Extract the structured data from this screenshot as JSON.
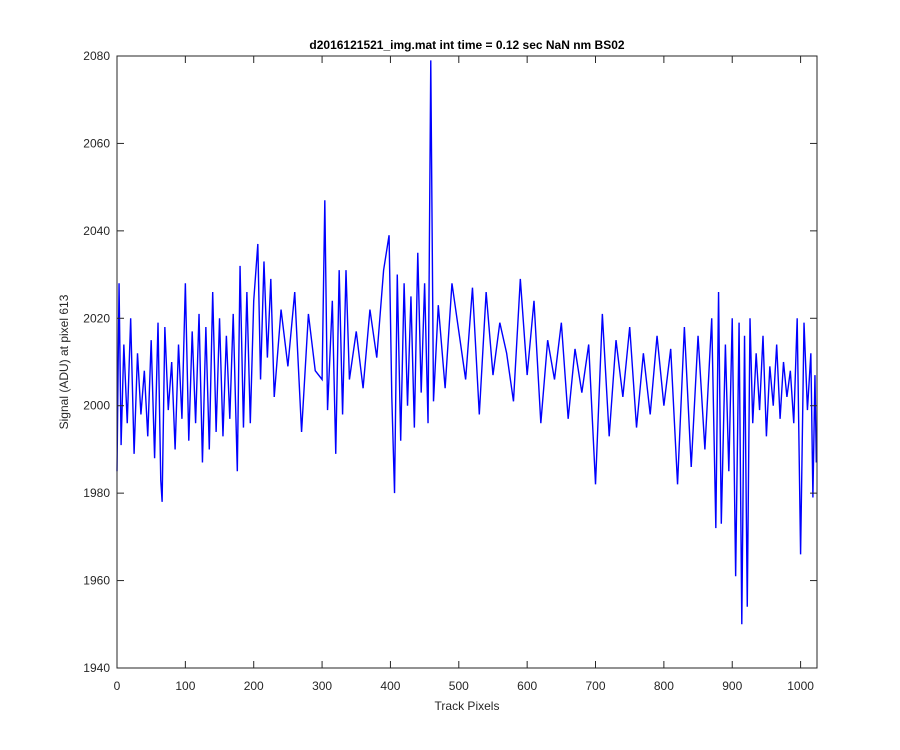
{
  "chart_data": {
    "type": "line",
    "title": "d2016121521_img.mat int time = 0.12 sec  NaN nm BS02",
    "xlabel": "Track Pixels",
    "ylabel": "Signal (ADU) at pixel 613",
    "xlim": [
      0,
      1024
    ],
    "ylim": [
      1940,
      2080
    ],
    "xticks": [
      0,
      100,
      200,
      300,
      400,
      500,
      600,
      700,
      800,
      900,
      1000
    ],
    "yticks": [
      1940,
      1960,
      1980,
      2000,
      2020,
      2040,
      2060,
      2080
    ],
    "grid": false,
    "color": "#0000ff",
    "series": [
      {
        "x": [
          0,
          3,
          6,
          10,
          15,
          20,
          25,
          30,
          35,
          40,
          45,
          50,
          55,
          60,
          64,
          66,
          70,
          75,
          80,
          85,
          90,
          95,
          100,
          105,
          110,
          115,
          120,
          125,
          130,
          135,
          140,
          145,
          150,
          155,
          160,
          165,
          170,
          176,
          180,
          185,
          190,
          195,
          200,
          206,
          210,
          215,
          220,
          225,
          230,
          240,
          250,
          260,
          270,
          280,
          290,
          300,
          304,
          308,
          315,
          320,
          325,
          330,
          335,
          340,
          350,
          360,
          370,
          380,
          390,
          398,
          402,
          406,
          410,
          415,
          420,
          425,
          430,
          435,
          440,
          445,
          450,
          455,
          459,
          463,
          470,
          480,
          490,
          500,
          510,
          520,
          530,
          540,
          550,
          560,
          570,
          580,
          590,
          600,
          610,
          620,
          630,
          640,
          650,
          660,
          670,
          680,
          690,
          700,
          710,
          720,
          730,
          740,
          750,
          760,
          770,
          780,
          790,
          800,
          810,
          820,
          830,
          840,
          850,
          860,
          870,
          876,
          880,
          884,
          890,
          895,
          900,
          905,
          910,
          914,
          918,
          922,
          926,
          930,
          935,
          940,
          945,
          950,
          955,
          960,
          965,
          970,
          975,
          980,
          985,
          990,
          995,
          1000,
          1005,
          1010,
          1015,
          1018,
          1021,
          1023
        ],
        "y": [
          1985,
          2028,
          1991,
          2014,
          1996,
          2020,
          1989,
          2012,
          1998,
          2008,
          1993,
          2015,
          1988,
          2019,
          1983,
          1978,
          2018,
          1999,
          2010,
          1990,
          2014,
          1997,
          2028,
          1992,
          2017,
          1996,
          2021,
          1987,
          2018,
          1990,
          2026,
          1994,
          2020,
          1993,
          2016,
          1997,
          2021,
          1985,
          2032,
          1995,
          2026,
          1996,
          2024,
          2037,
          2006,
          2033,
          2011,
          2029,
          2002,
          2022,
          2009,
          2026,
          1994,
          2021,
          2008,
          2006,
          2047,
          1999,
          2024,
          1989,
          2031,
          1998,
          2031,
          2006,
          2017,
          2004,
          2022,
          2011,
          2031,
          2039,
          2002,
          1980,
          2030,
          1992,
          2028,
          2000,
          2025,
          1995,
          2035,
          2003,
          2028,
          1996,
          2079,
          2001,
          2023,
          2004,
          2028,
          2017,
          2006,
          2027,
          1998,
          2026,
          2007,
          2019,
          2012,
          2001,
          2029,
          2007,
          2024,
          1996,
          2015,
          2006,
          2019,
          1997,
          2013,
          2003,
          2014,
          1982,
          2021,
          1993,
          2015,
          2002,
          2018,
          1995,
          2012,
          1998,
          2016,
          2000,
          2013,
          1982,
          2018,
          1986,
          2016,
          1990,
          2020,
          1972,
          2026,
          1973,
          2014,
          1985,
          2020,
          1961,
          2019,
          1950,
          2016,
          1954,
          2020,
          1996,
          2012,
          1999,
          2016,
          1993,
          2009,
          2000,
          2014,
          1997,
          2010,
          2002,
          2008,
          1996,
          2020,
          1966,
          2019,
          1999,
          2012,
          1979,
          2007,
          1987
        ]
      }
    ]
  }
}
